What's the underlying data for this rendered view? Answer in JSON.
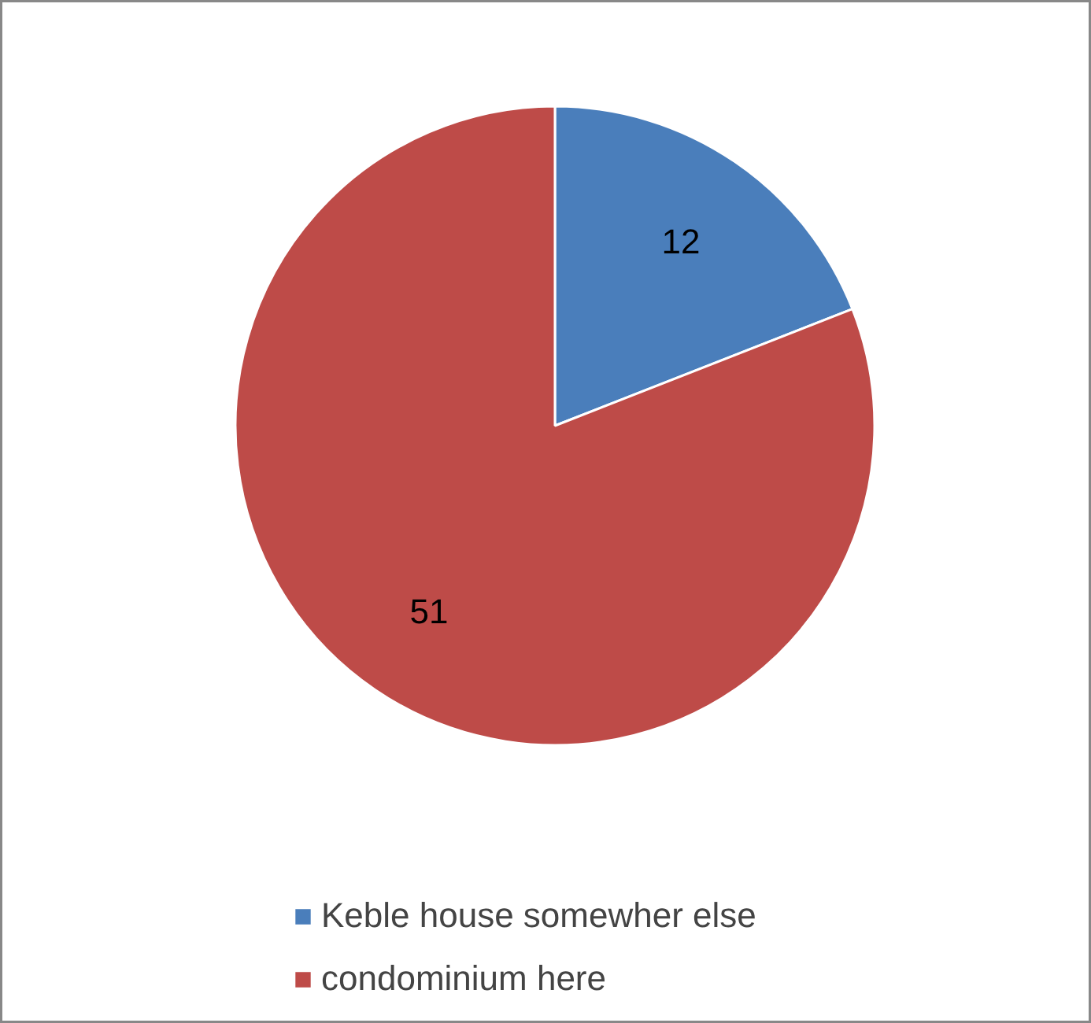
{
  "chart_data": {
    "type": "pie",
    "categories": [
      "Keble house somewher else",
      "condominium here"
    ],
    "values": [
      12,
      51
    ],
    "colors": [
      "#4a7ebb",
      "#be4b48"
    ],
    "data_labels": true,
    "legend": "bottom"
  }
}
